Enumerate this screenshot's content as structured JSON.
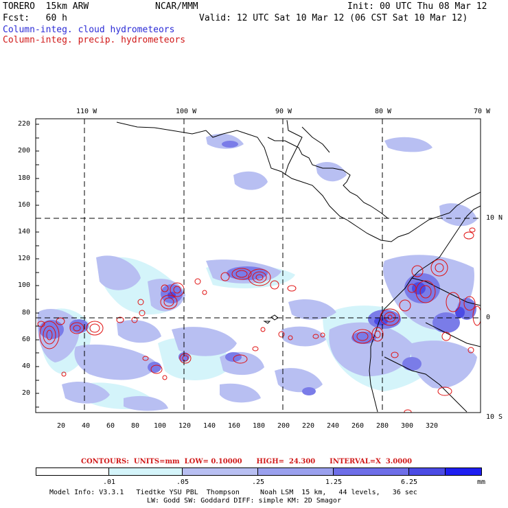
{
  "header": {
    "model": "TORERO  15km ARW",
    "org": "NCAR/MMM",
    "init": "Init: 00 UTC Thu 08 Mar 12",
    "fcst": "Fcst:   60 h",
    "valid": "Valid: 12 UTC Sat 10 Mar 12 (06 CST Sat 10 Mar 12)",
    "field_cloud": "Column-integ. cloud hydrometeors",
    "field_precip": "Column-integ. precip. hydrometeors"
  },
  "map": {
    "lon_labels": [
      "110 W",
      "100 W",
      "90 W",
      "80 W",
      "70 W"
    ],
    "lat_labels": [
      "10 N",
      "0",
      "10 S"
    ],
    "y_ticks": [
      "220",
      "200",
      "180",
      "160",
      "140",
      "120",
      "100",
      "80",
      "60",
      "40",
      "20"
    ],
    "x_ticks": [
      "20",
      "40",
      "60",
      "80",
      "100",
      "120",
      "140",
      "160",
      "180",
      "200",
      "220",
      "240",
      "260",
      "280",
      "300",
      "320"
    ]
  },
  "contours_line": "CONTOURS:  UNITS=mm  LOW= 0.10000      HIGH=  24.300      INTERVAL=X  3.0000",
  "colorbar": {
    "labels": [
      ".01",
      ".05",
      ".25",
      "1.25",
      "6.25"
    ],
    "unit": "mm",
    "colors": [
      "#ffffff",
      "#d4f4fa",
      "#b8bff2",
      "#9aa0ee",
      "#6e6ee8",
      "#4b4be4",
      "#1e1ef0"
    ]
  },
  "footer": {
    "line1": "Model Info: V3.3.1   Tiedtke YSU PBL  Thompson     Noah LSM  15 km,   44 levels,   36 sec",
    "line2": "LW: Godd SW: Goddard DIFF: simple KM: 2D Smagor"
  }
}
